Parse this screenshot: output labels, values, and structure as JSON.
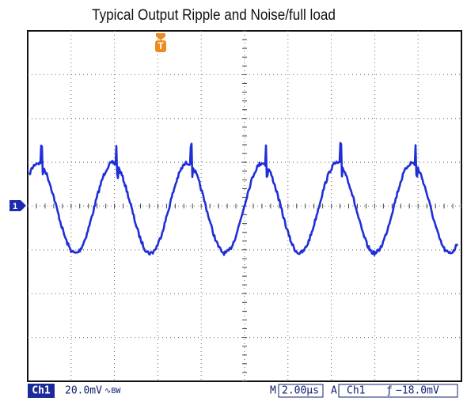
{
  "title": "Typical Output Ripple and Noise/full load",
  "markers": {
    "trigger": "T",
    "channel": "1"
  },
  "status_bar": {
    "channel": "Ch1",
    "scale": "20.0mV",
    "bandwidth": "∿BW",
    "timebase_prefix": "M",
    "timebase": "2.00µs",
    "trigger_mode": "A",
    "trigger_source": "Ch1",
    "trigger_slope": "ƒ",
    "trigger_level": "−18.0mV"
  }
}
